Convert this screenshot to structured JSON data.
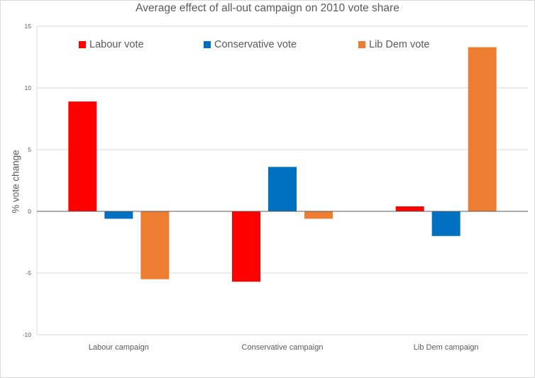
{
  "chart_data": {
    "type": "bar",
    "title": "Average effect of all-out campaign on 2010 vote share",
    "xlabel": "",
    "ylabel": "% vote change",
    "ylim": [
      -10,
      15
    ],
    "yticks": [
      -10,
      -5,
      0,
      5,
      10,
      15
    ],
    "grid": true,
    "legend_position": "top",
    "categories": [
      "Labour campaign",
      "Conservative campaign",
      "Lib Dem campaign"
    ],
    "series": [
      {
        "name": "Labour vote",
        "color": "#ff0000",
        "values": [
          8.9,
          -5.7,
          0.4
        ]
      },
      {
        "name": "Conservative vote",
        "color": "#0070c0",
        "values": [
          -0.6,
          3.6,
          -2.0
        ]
      },
      {
        "name": "Lib Dem vote",
        "color": "#ed7d31",
        "values": [
          -5.5,
          -0.6,
          13.3
        ]
      }
    ]
  }
}
